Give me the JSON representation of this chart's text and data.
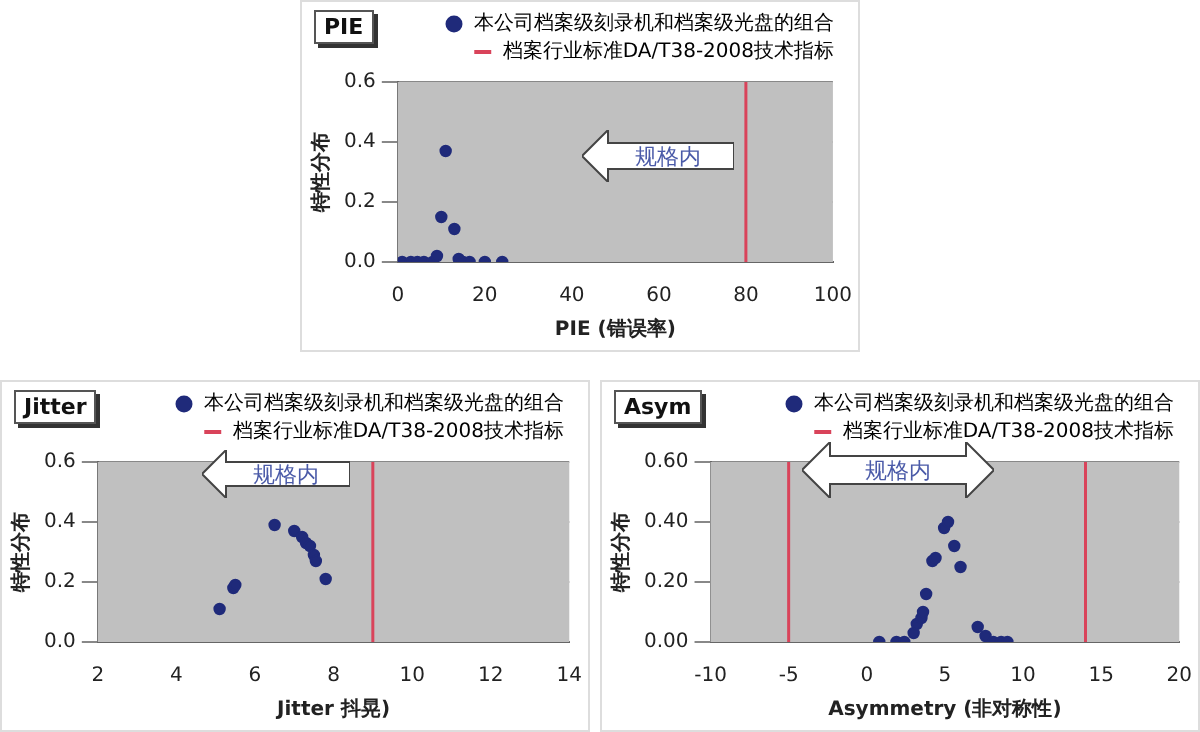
{
  "chart_data": [
    {
      "type": "scatter",
      "title": "PIE",
      "xlabel": "PIE (错误率)",
      "ylabel": "特性分布",
      "series": [
        {
          "name": "本公司档案级刻录机和档案级光盘的组合",
          "color": "#1f2a7a",
          "x": [
            1,
            3,
            4.5,
            6,
            8,
            9,
            10,
            11,
            13,
            14,
            15,
            16.5,
            20,
            24
          ],
          "values": [
            0,
            0,
            0,
            0,
            0,
            0.02,
            0.15,
            0.37,
            0.11,
            0.01,
            0,
            0,
            0,
            0
          ]
        }
      ],
      "xlim": [
        0,
        100
      ],
      "xticks": [
        0,
        20,
        40,
        60,
        80,
        100
      ],
      "ylim": [
        0,
        0.6
      ],
      "yticks": [
        {
          "value": 0,
          "label": "0.0"
        },
        {
          "value": 0.2,
          "label": "0.2"
        },
        {
          "value": 0.4,
          "label": "0.4"
        },
        {
          "value": 0.6,
          "label": "0.6"
        }
      ],
      "ref_lines": [
        {
          "axis": "x",
          "value": 80,
          "label": "档案行业标准DA/T38-2008技术指标",
          "color": "#d9435a"
        }
      ],
      "annotations": [
        "规格内"
      ],
      "grid": "y",
      "legend": "top right",
      "marker": "circle"
    },
    {
      "type": "scatter",
      "title": "Jitter",
      "xlabel": "Jitter 抖晃)",
      "ylabel": "特性分布",
      "series": [
        {
          "name": "本公司档案级刻录机和档案级光盘的组合",
          "color": "#1f2a7a",
          "x": [
            5.1,
            5.45,
            5.5,
            6.5,
            7.0,
            7.2,
            7.3,
            7.4,
            7.5,
            7.55,
            7.8
          ],
          "values": [
            0.11,
            0.18,
            0.19,
            0.39,
            0.37,
            0.35,
            0.33,
            0.32,
            0.29,
            0.27,
            0.21
          ]
        }
      ],
      "xlim": [
        2,
        14
      ],
      "xticks": [
        2,
        4,
        6,
        8,
        10,
        12,
        14
      ],
      "ylim": [
        0,
        0.6
      ],
      "yticks": [
        {
          "value": 0,
          "label": "0.0"
        },
        {
          "value": 0.2,
          "label": "0.2"
        },
        {
          "value": 0.4,
          "label": "0.4"
        },
        {
          "value": 0.6,
          "label": "0.6"
        }
      ],
      "ref_lines": [
        {
          "axis": "x",
          "value": 9,
          "label": "档案行业标准DA/T38-2008技术指标",
          "color": "#d9435a"
        }
      ],
      "annotations": [
        "规格内"
      ],
      "grid": "y",
      "legend": "top right",
      "marker": "circle"
    },
    {
      "type": "scatter",
      "title": "Asym",
      "xlabel": "Asymmetry (非对称性)",
      "ylabel": "特性分布",
      "series": [
        {
          "name": "本公司档案级刻录机和档案级光盘的组合",
          "color": "#1f2a7a",
          "x": [
            0.8,
            1.9,
            2.4,
            3,
            3.2,
            3.5,
            3.6,
            3.8,
            4.2,
            4.4,
            4.95,
            5.2,
            5.6,
            6.0,
            7.1,
            7.6,
            8.1,
            8.6,
            9
          ],
          "values": [
            0,
            0,
            0,
            0.03,
            0.06,
            0.08,
            0.1,
            0.16,
            0.27,
            0.28,
            0.38,
            0.4,
            0.32,
            0.25,
            0.05,
            0.02,
            0,
            0,
            0
          ]
        }
      ],
      "xlim": [
        -10,
        20
      ],
      "xticks": [
        -10,
        -5,
        0,
        5,
        10,
        15,
        20
      ],
      "ylim": [
        0,
        0.6
      ],
      "yticks": [
        {
          "value": 0,
          "label": "0.00"
        },
        {
          "value": 0.2,
          "label": "0.20"
        },
        {
          "value": 0.4,
          "label": "0.40"
        },
        {
          "value": 0.6,
          "label": "0.60"
        }
      ],
      "ref_lines": [
        {
          "axis": "x",
          "value": -5,
          "label": "档案行业标准DA/T38-2008技术指标",
          "color": "#d9435a"
        },
        {
          "axis": "x",
          "value": 14,
          "label": null,
          "color": "#d9435a"
        }
      ],
      "annotations": [
        "规格内"
      ],
      "grid": "y",
      "legend": "top right",
      "marker": "circle"
    }
  ]
}
